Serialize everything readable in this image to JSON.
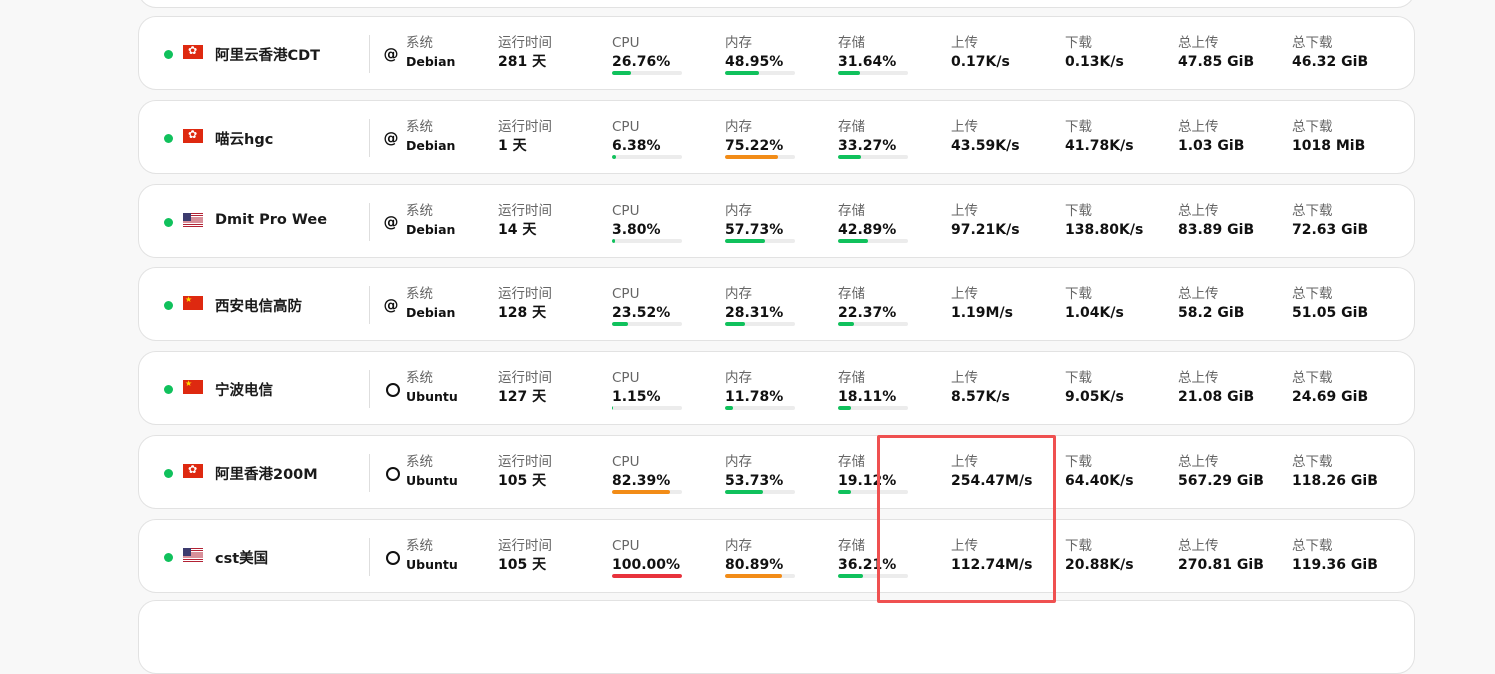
{
  "labels": {
    "os": "系统",
    "uptime": "运行时间",
    "cpu": "CPU",
    "mem": "内存",
    "disk": "存储",
    "upload": "上传",
    "download": "下载",
    "total_up": "总上传",
    "total_down": "总下载"
  },
  "colors": {
    "online": "#10c15c",
    "bar_ok": "#10c15c",
    "bar_warn": "#f28c17",
    "bar_danger": "#e8323c",
    "highlight": "#ef5050"
  },
  "servers": [
    {
      "name": "阿里云香港CDT",
      "flag": "hk",
      "online": true,
      "os_icon": "debian-icon",
      "os": "Debian",
      "uptime": "281 天",
      "cpu": "26.76%",
      "cpu_frac": 0.2676,
      "mem": "48.95%",
      "mem_frac": 0.4895,
      "disk": "31.64%",
      "disk_frac": 0.3164,
      "upload": "0.17K/s",
      "download": "0.13K/s",
      "total_up": "47.85 GiB",
      "total_down": "46.32 GiB"
    },
    {
      "name": "喵云hgc",
      "flag": "hk",
      "online": true,
      "os_icon": "debian-icon",
      "os": "Debian",
      "uptime": "1 天",
      "cpu": "6.38%",
      "cpu_frac": 0.0638,
      "mem": "75.22%",
      "mem_frac": 0.7522,
      "disk": "33.27%",
      "disk_frac": 0.3327,
      "upload": "43.59K/s",
      "download": "41.78K/s",
      "total_up": "1.03 GiB",
      "total_down": "1018 MiB"
    },
    {
      "name": "Dmit Pro Wee",
      "flag": "us",
      "online": true,
      "os_icon": "debian-icon",
      "os": "Debian",
      "uptime": "14 天",
      "cpu": "3.80%",
      "cpu_frac": 0.038,
      "mem": "57.73%",
      "mem_frac": 0.5773,
      "disk": "42.89%",
      "disk_frac": 0.4289,
      "upload": "97.21K/s",
      "download": "138.80K/s",
      "total_up": "83.89 GiB",
      "total_down": "72.63 GiB"
    },
    {
      "name": "西安电信高防",
      "flag": "cn",
      "online": true,
      "os_icon": "debian-icon",
      "os": "Debian",
      "uptime": "128 天",
      "cpu": "23.52%",
      "cpu_frac": 0.2352,
      "mem": "28.31%",
      "mem_frac": 0.2831,
      "disk": "22.37%",
      "disk_frac": 0.2237,
      "upload": "1.19M/s",
      "download": "1.04K/s",
      "total_up": "58.2 GiB",
      "total_down": "51.05 GiB"
    },
    {
      "name": "宁波电信",
      "flag": "cn",
      "online": true,
      "os_icon": "ubuntu-icon",
      "os": "Ubuntu",
      "uptime": "127 天",
      "cpu": "1.15%",
      "cpu_frac": 0.0115,
      "mem": "11.78%",
      "mem_frac": 0.1178,
      "disk": "18.11%",
      "disk_frac": 0.1811,
      "upload": "8.57K/s",
      "download": "9.05K/s",
      "total_up": "21.08 GiB",
      "total_down": "24.69 GiB"
    },
    {
      "name": "阿里香港200M",
      "flag": "hk",
      "online": true,
      "os_icon": "ubuntu-icon",
      "os": "Ubuntu",
      "uptime": "105 天",
      "cpu": "82.39%",
      "cpu_frac": 0.8239,
      "mem": "53.73%",
      "mem_frac": 0.5373,
      "disk": "19.12%",
      "disk_frac": 0.1912,
      "upload": "254.47M/s",
      "download": "64.40K/s",
      "total_up": "567.29 GiB",
      "total_down": "118.26 GiB"
    },
    {
      "name": "cst美国",
      "flag": "us",
      "online": true,
      "os_icon": "ubuntu-icon",
      "os": "Ubuntu",
      "uptime": "105 天",
      "cpu": "100.00%",
      "cpu_frac": 1.0,
      "mem": "80.89%",
      "mem_frac": 0.8089,
      "disk": "36.21%",
      "disk_frac": 0.3621,
      "upload": "112.74M/s",
      "download": "20.88K/s",
      "total_up": "270.81 GiB",
      "total_down": "119.36 GiB"
    }
  ]
}
